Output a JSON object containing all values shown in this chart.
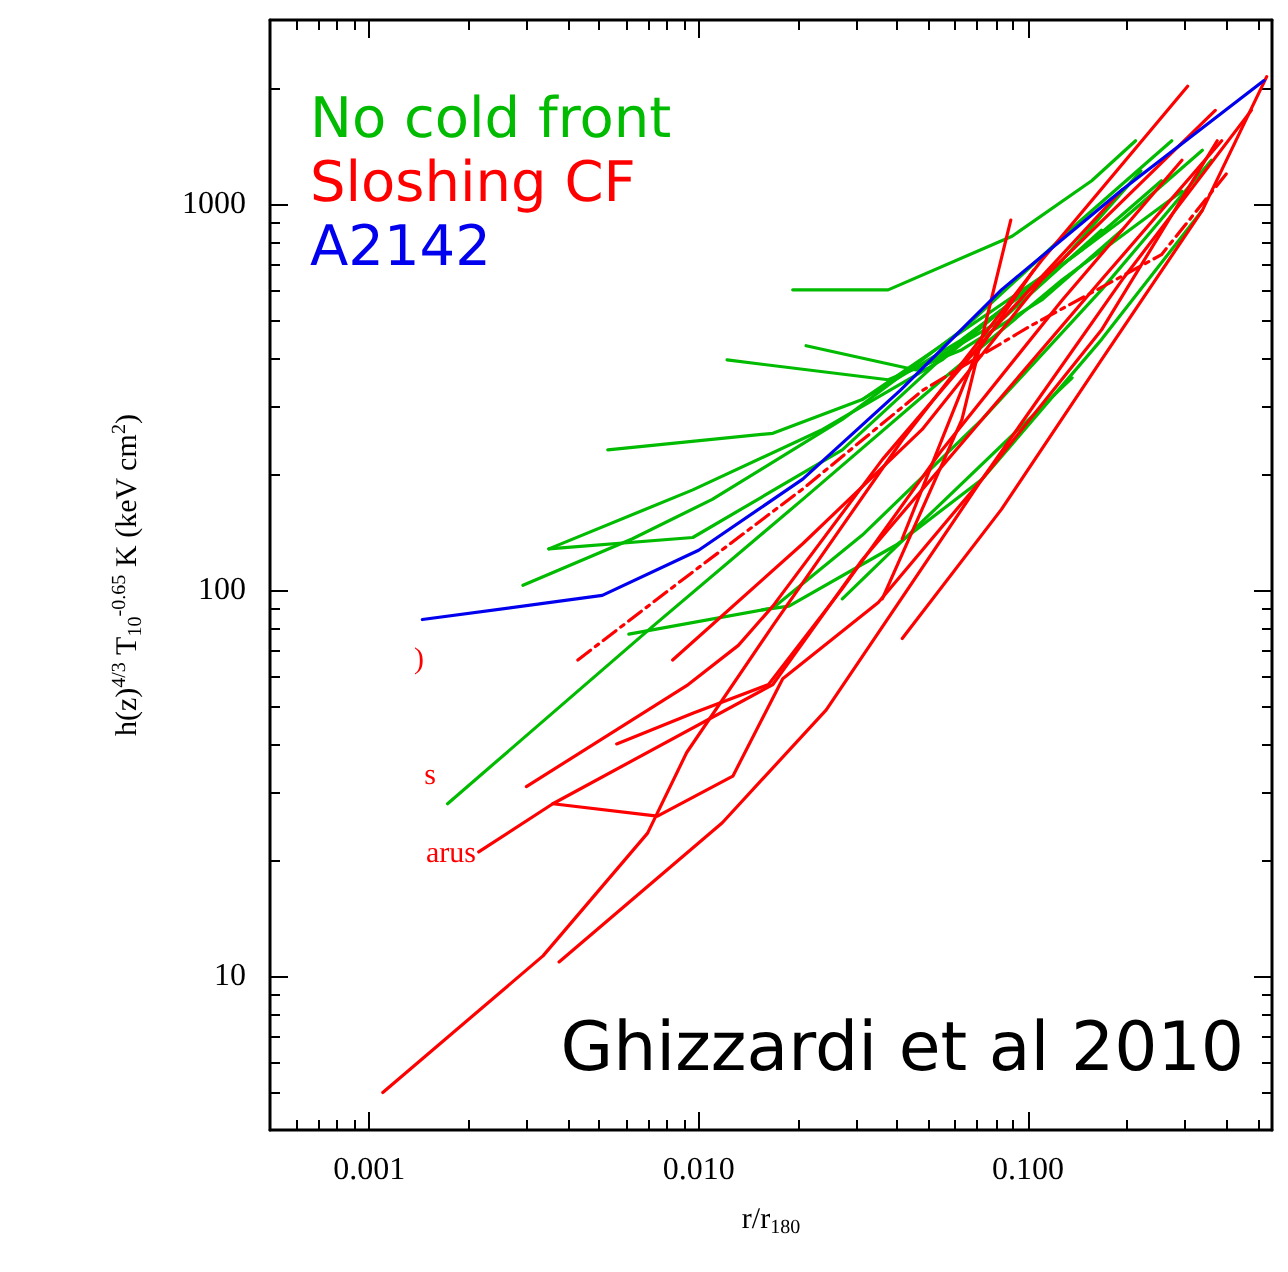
{
  "chart_data": {
    "type": "line",
    "xlabel": "r/r$_{180}$",
    "ylabel": "h(z)$^{4/3}$ T$_{10}$$^{-0.65}$ K (keV cm$^{2}$)",
    "log": "xy",
    "grid": false,
    "legend": "top left",
    "marker": "none",
    "line_style": "solid",
    "xlim": [
      0.0005,
      0.55
    ],
    "ylim": [
      4,
      3000
    ],
    "xticks": [
      {
        "value": 0.001,
        "label": "0.001"
      },
      {
        "value": 0.01,
        "label": "0.010"
      },
      {
        "value": 0.1,
        "label": "0.100"
      }
    ],
    "yticks": [
      10,
      100,
      1000
    ],
    "annotations": [
      "Ghizzardi et al 2010",
      ")",
      "s",
      "arus"
    ],
    "series": [
      {
        "name": "No cold front",
        "color": "#00bb00",
        "x": [
          0.0193,
          0.0376,
          0.0894,
          0.156,
          0.212
        ],
        "values": [
          600,
          600,
          826,
          1150,
          1460
        ]
      },
      {
        "color": "#00bb00",
        "x": [
          0.0122,
          0.0376,
          0.063,
          0.11,
          0.193
        ],
        "values": [
          395,
          351,
          420,
          565,
          857
        ]
      },
      {
        "color": "#00bb00",
        "x": [
          0.0212,
          0.0457,
          0.083,
          0.167
        ],
        "values": [
          430,
          372,
          501,
          857
        ]
      },
      {
        "color": "#00bb00",
        "x": [
          0.0053,
          0.0168,
          0.0314,
          0.063,
          0.145,
          0.254
        ],
        "values": [
          231,
          255,
          312,
          446,
          760,
          1150
        ]
      },
      {
        "color": "#00bb00",
        "x": [
          0.00351,
          0.0096,
          0.0238,
          0.0548,
          0.127,
          0.22
        ],
        "values": [
          128,
          182,
          261,
          395,
          716,
          1220
        ]
      },
      {
        "color": "#00bb00",
        "x": [
          0.00293,
          0.0063,
          0.011,
          0.0273,
          0.063,
          0.145,
          0.273
        ],
        "values": [
          103,
          136,
          172,
          277,
          472,
          910,
          1460
        ]
      },
      {
        "color": "#00bb00",
        "x": [
          0.00351,
          0.0096,
          0.0273,
          0.063,
          0.193,
          0.338
        ],
        "values": [
          128,
          137,
          231,
          446,
          910,
          1380
        ]
      },
      {
        "color": "#00bb00",
        "x": [
          0.00614,
          0.0168,
          0.0314,
          0.0725,
          0.167,
          0.36
        ],
        "values": [
          77,
          90,
          139,
          277,
          600,
          1300
        ]
      },
      {
        "color": "#00bb00",
        "x": [
          0.00173,
          0.0073,
          0.0207,
          0.0548,
          0.127,
          0.293
        ],
        "values": [
          28,
          81,
          172,
          351,
          637,
          1080
        ]
      },
      {
        "color": "#00bb00",
        "x": [
          0.0156,
          0.0188,
          0.0398,
          0.0725,
          0.167,
          0.338
        ],
        "values": [
          89,
          91,
          131,
          194,
          446,
          964
        ]
      },
      {
        "color": "#00bb00",
        "x": [
          0.0273,
          0.0498,
          0.136
        ],
        "values": [
          95,
          156,
          355
        ]
      },
      {
        "color": "#00bb00",
        "x": [
          0.0314,
          0.123
        ],
        "values": [
          312,
          692
        ]
      },
      {
        "name": "Sloshing CF",
        "color": "#ff0000",
        "x": [
          0.0011,
          0.00337,
          0.007,
          0.0092,
          0.0168,
          0.0415,
          0.11,
          0.305
        ],
        "values": [
          5,
          11.3,
          23.5,
          38,
          81,
          245,
          716,
          2020
        ]
      },
      {
        "color": "#ff0000",
        "x": [
          0.00377,
          0.0118,
          0.0244,
          0.0725,
          0.167,
          0.375
        ],
        "values": [
          10.9,
          25,
          49,
          194,
          472,
          1460
        ]
      },
      {
        "color": "#ff0000",
        "x": [
          0.00215,
          0.00361,
          0.0168,
          0.0314,
          0.0725,
          0.167,
          0.387
        ],
        "values": [
          21,
          28,
          57,
          120,
          277,
          637,
          1460
        ]
      },
      {
        "color": "#ff0000",
        "x": [
          0.00361,
          0.0075,
          0.0127,
          0.018,
          0.0351,
          0.0725,
          0.193,
          0.476
        ],
        "values": [
          28,
          26,
          33,
          59,
          93,
          194,
          637,
          1750
        ]
      },
      {
        "color": "#ff0000",
        "x": [
          0.003,
          0.0093,
          0.0132,
          0.0168,
          0.0361,
          0.083,
          0.193
        ],
        "values": [
          31,
          57,
          72,
          91,
          218,
          501,
          1090
        ]
      },
      {
        "color": "#ff0000",
        "x": [
          0.00564,
          0.0096,
          0.0163,
          0.0273,
          0.0548,
          0.127,
          0.293
        ],
        "values": [
          40,
          48,
          57,
          101,
          231,
          565,
          1300
        ]
      },
      {
        "color": "#ff0000",
        "x": [
          0.0361,
          0.063,
          0.0886
        ],
        "values": [
          95,
          277,
          910
        ]
      },
      {
        "color": "#ff0000",
        "x": [
          0.0415,
          0.0695,
          0.104
        ],
        "values": [
          136,
          409,
          675
        ]
      },
      {
        "color": "#ff0000",
        "x": [
          0.00834,
          0.0207,
          0.0477,
          0.11,
          0.37
        ],
        "values": [
          66,
          132,
          261,
          637,
          1750
        ]
      },
      {
        "color": "#ff0000",
        "x": [
          0.0415,
          0.083,
          0.167,
          0.338,
          0.53
        ],
        "values": [
          75,
          162,
          395,
          964,
          2140
        ]
      },
      {
        "color": "#ff0000",
        "line_style": "dashed",
        "x": [
          0.0043,
          0.009,
          0.0207,
          0.048,
          0.1,
          0.254,
          0.4
        ],
        "values": [
          66,
          107,
          183,
          330,
          480,
          740,
          1200
        ]
      },
      {
        "name": "A2142",
        "color": "#0000ee",
        "x": [
          0.00145,
          0.0051,
          0.01,
          0.0207,
          0.041,
          0.083,
          0.193,
          0.52
        ],
        "values": [
          84,
          97,
          127,
          194,
          330,
          600,
          1090,
          2090
        ]
      }
    ]
  }
}
